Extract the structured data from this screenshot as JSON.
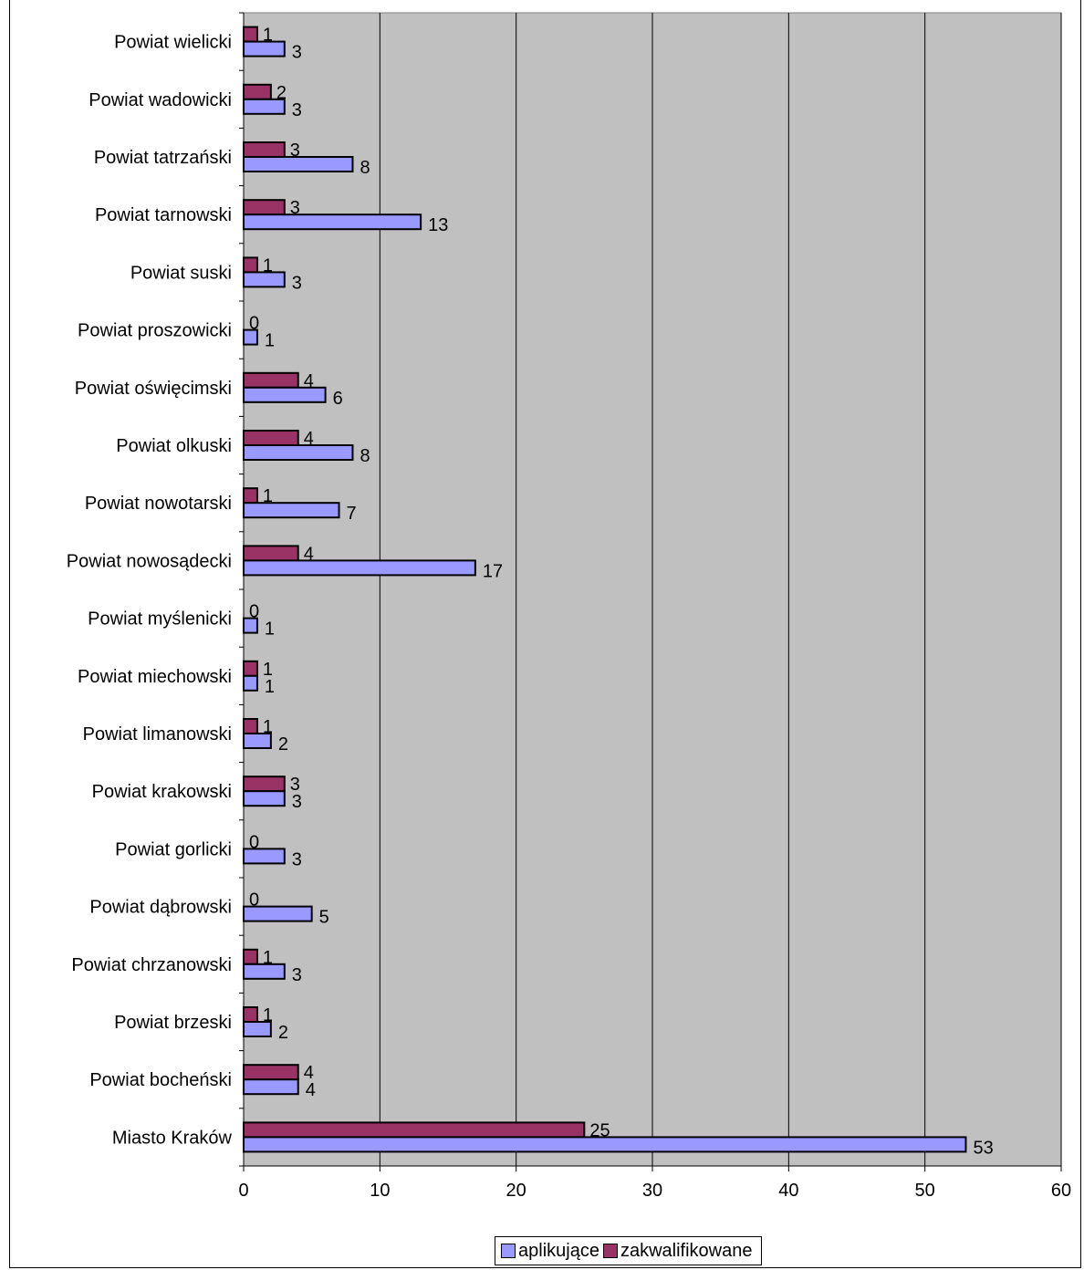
{
  "chart_data": {
    "type": "bar",
    "orientation": "horizontal",
    "categories": [
      "Powiat wielicki",
      "Powiat wadowicki",
      "Powiat tatrzański",
      "Powiat tarnowski",
      "Powiat  suski",
      "Powiat proszowicki",
      "Powiat oświęcimski",
      "Powiat   olkuski",
      "Powiat nowotarski",
      "Powiat nowosądecki",
      "Powiat myślenicki",
      "Powiat miechowski",
      "Powiat limanowski",
      "Powiat krakowski",
      "Powiat  gorlicki",
      "Powiat dąbrowski",
      "Powiat chrzanowski",
      "Powiat  brzeski",
      "Powiat bocheński",
      "Miasto Kraków"
    ],
    "series": [
      {
        "name": "aplikujące",
        "color": "#9999ff",
        "values": [
          3,
          3,
          8,
          13,
          3,
          1,
          6,
          8,
          7,
          17,
          1,
          1,
          2,
          3,
          3,
          5,
          3,
          2,
          4,
          53
        ]
      },
      {
        "name": "zakwalifikowane",
        "color": "#993366",
        "values": [
          1,
          2,
          3,
          3,
          1,
          0,
          4,
          4,
          1,
          4,
          0,
          1,
          1,
          3,
          0,
          0,
          1,
          1,
          4,
          25
        ]
      }
    ],
    "xlim": [
      0,
      60
    ],
    "xticks": [
      0,
      10,
      20,
      30,
      40,
      50,
      60
    ],
    "grid": true,
    "plot_background": "#c0c0c0",
    "legend_position": "bottom"
  }
}
